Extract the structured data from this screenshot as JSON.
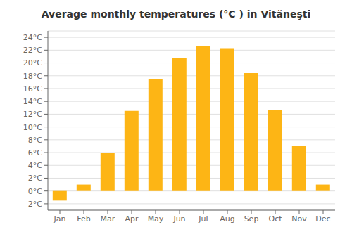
{
  "chart_data": {
    "type": "bar",
    "title": "Average monthly temperatures (°C ) in Vităneşti",
    "categories": [
      "Jan",
      "Feb",
      "Mar",
      "Apr",
      "May",
      "Jun",
      "Jul",
      "Aug",
      "Sep",
      "Oct",
      "Nov",
      "Dec"
    ],
    "values": [
      -1.5,
      1.0,
      5.9,
      12.5,
      17.5,
      20.8,
      22.7,
      22.2,
      18.4,
      12.6,
      7.0,
      1.0
    ],
    "color": "#FDB515",
    "ylim": [
      -3,
      25
    ],
    "yticks": [
      {
        "value": -2,
        "label": "-2°C"
      },
      {
        "value": 0,
        "label": "0°C"
      },
      {
        "value": 2,
        "label": "2°C"
      },
      {
        "value": 4,
        "label": "4°C"
      },
      {
        "value": 6,
        "label": "6°C"
      },
      {
        "value": 8,
        "label": "8°C"
      },
      {
        "value": 10,
        "label": "10°C"
      },
      {
        "value": 12,
        "label": "12°C"
      },
      {
        "value": 14,
        "label": "14°C"
      },
      {
        "value": 16,
        "label": "16°C"
      },
      {
        "value": 18,
        "label": "18°C"
      },
      {
        "value": 20,
        "label": "20°C"
      },
      {
        "value": 22,
        "label": "22°C"
      },
      {
        "value": 24,
        "label": "24°C"
      }
    ],
    "grid": true
  }
}
